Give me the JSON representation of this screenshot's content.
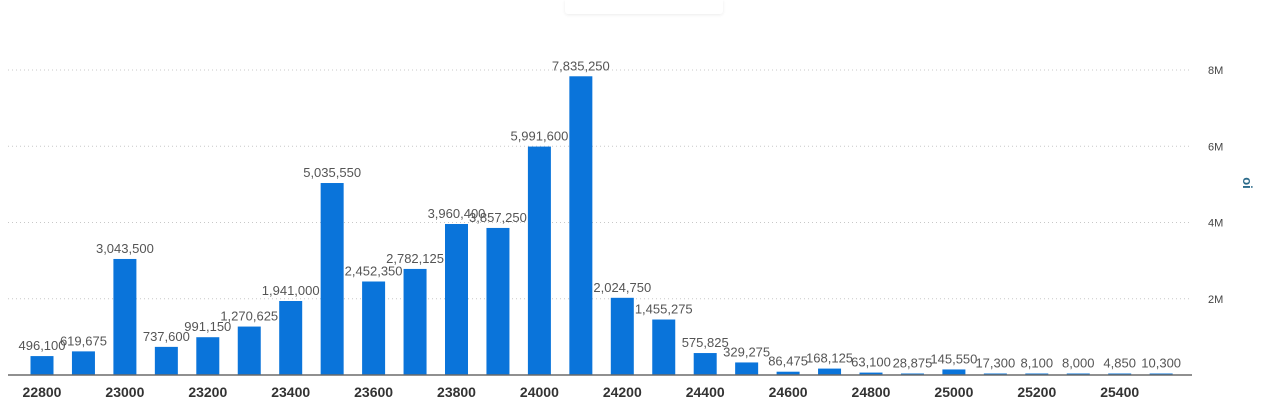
{
  "chart_data": {
    "type": "bar",
    "x": [
      22800,
      22900,
      23000,
      23100,
      23200,
      23300,
      23400,
      23500,
      23600,
      23700,
      23800,
      23900,
      24000,
      24100,
      24200,
      24300,
      24400,
      24500,
      24600,
      24700,
      24800,
      24900,
      25000,
      25100,
      25200,
      25300,
      25400,
      25500
    ],
    "values": [
      496100,
      619675,
      3043500,
      737600,
      991150,
      1270625,
      1941000,
      5035550,
      2452350,
      2782125,
      3960400,
      3857250,
      5991600,
      7835250,
      2024750,
      1455275,
      575825,
      329275,
      86475,
      168125,
      63100,
      28875,
      145550,
      17300,
      8100,
      8000,
      4850,
      10300
    ],
    "data_labels": [
      "496,100",
      "619,675",
      "3,043,500",
      "737,600",
      "991,150",
      "1,270,625",
      "1,941,000",
      "5,035,550",
      "2,452,350",
      "2,782,125",
      "3,960,400",
      "3,857,250",
      "5,991,600",
      "7,835,250",
      "2,024,750",
      "1,455,275",
      "575,825",
      "329,275",
      "86,475",
      "168,125",
      "63,100",
      "28,875",
      "145,550",
      "17,300",
      "8,100",
      "8,000",
      "4,850",
      "10,300"
    ],
    "x_ticks": [
      "22800",
      "23000",
      "23200",
      "23400",
      "23600",
      "23800",
      "24000",
      "24200",
      "24400",
      "24600",
      "24800",
      "25000",
      "25200",
      "25400"
    ],
    "y_ticks": [
      {
        "value": 2000000,
        "label": "2M"
      },
      {
        "value": 4000000,
        "label": "4M"
      },
      {
        "value": 6000000,
        "label": "6M"
      },
      {
        "value": 8000000,
        "label": "8M"
      }
    ],
    "ylim": [
      0,
      8000000
    ],
    "ylabel": "oi",
    "xlabel": "",
    "title": "",
    "grid": true,
    "y_axis_side": "right",
    "bar_color": "#0a74da"
  }
}
